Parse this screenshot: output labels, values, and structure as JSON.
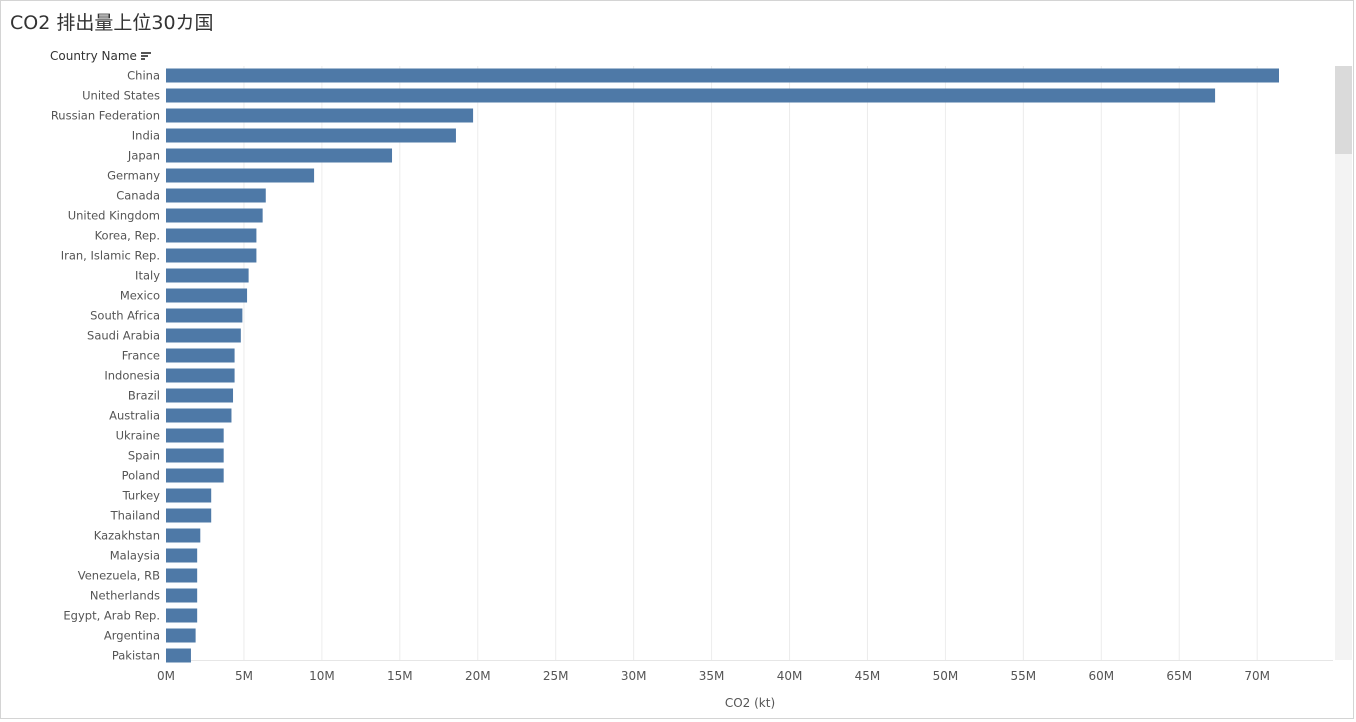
{
  "title": "CO2 排出量上位30カ国",
  "field_header": {
    "label": "Country Name",
    "sort_icon": "sort-descending-icon"
  },
  "colors": {
    "bar": "#4e79a7",
    "grid": "#ececec",
    "text": "#555555"
  },
  "chart_data": {
    "type": "bar",
    "orientation": "horizontal",
    "title": "CO2 排出量上位30カ国",
    "xlabel": "CO2 (kt)",
    "ylabel": "Country Name",
    "xlim": [
      0,
      75000000
    ],
    "grid": true,
    "tick_values": [
      0,
      5000000,
      10000000,
      15000000,
      20000000,
      25000000,
      30000000,
      35000000,
      40000000,
      45000000,
      50000000,
      55000000,
      60000000,
      65000000,
      70000000
    ],
    "tick_labels": [
      "0M",
      "5M",
      "10M",
      "15M",
      "20M",
      "25M",
      "30M",
      "35M",
      "40M",
      "45M",
      "50M",
      "55M",
      "60M",
      "65M",
      "70M"
    ],
    "categories": [
      "China",
      "United States",
      "Russian Federation",
      "India",
      "Japan",
      "Germany",
      "Canada",
      "United Kingdom",
      "Korea, Rep.",
      "Iran, Islamic Rep.",
      "Italy",
      "Mexico",
      "South Africa",
      "Saudi Arabia",
      "France",
      "Indonesia",
      "Brazil",
      "Australia",
      "Ukraine",
      "Spain",
      "Poland",
      "Turkey",
      "Thailand",
      "Kazakhstan",
      "Malaysia",
      "Venezuela, RB",
      "Netherlands",
      "Egypt, Arab Rep.",
      "Argentina",
      "Pakistan"
    ],
    "values": [
      71400000,
      67300000,
      19700000,
      18600000,
      14500000,
      9500000,
      6400000,
      6200000,
      5800000,
      5800000,
      5300000,
      5200000,
      4900000,
      4800000,
      4400000,
      4400000,
      4300000,
      4200000,
      3700000,
      3700000,
      3700000,
      2900000,
      2900000,
      2200000,
      2000000,
      2000000,
      2000000,
      2000000,
      1900000,
      1600000
    ]
  },
  "scrollbar": {
    "position": 0
  }
}
